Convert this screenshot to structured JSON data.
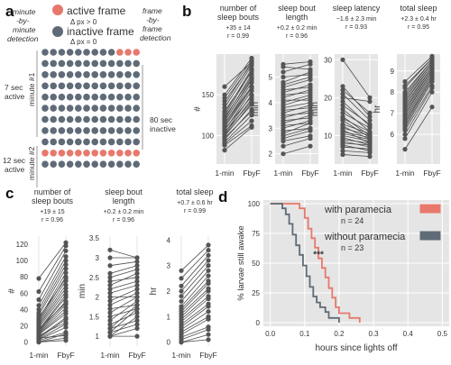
{
  "panel_labels": [
    "a",
    "b",
    "c",
    "d"
  ],
  "panel_a": {
    "legend_active_label": "active frame",
    "legend_active_sub": "Δ px > 0",
    "legend_inactive_label": "inactive frame",
    "legend_inactive_sub": "Δ px = 0",
    "left_method_label": [
      "minute",
      "-by-",
      "minute",
      "detection"
    ],
    "right_method_label": [
      "frame",
      "-by-",
      "frame",
      "detection"
    ],
    "active_note_1": [
      "7 sec",
      "active"
    ],
    "active_note_2": [
      "12 sec",
      "active"
    ],
    "inactive_note": [
      "80 sec",
      "inactive"
    ],
    "minute_1": "minute #1",
    "minute_2": "minute #2",
    "colors": {
      "active": "#e8786c",
      "inactive": "#5f6b76"
    },
    "grid": [
      [
        0,
        0,
        0,
        0,
        0,
        0,
        0,
        0,
        0,
        1,
        1,
        1
      ],
      [
        0,
        0,
        0,
        0,
        0,
        0,
        0,
        0,
        0,
        0,
        0,
        0
      ],
      [
        0,
        0,
        0,
        0,
        0,
        0,
        0,
        0,
        0,
        0,
        0,
        0
      ],
      [
        0,
        0,
        0,
        0,
        0,
        0,
        0,
        0,
        0,
        0,
        0,
        0
      ],
      [
        0,
        0,
        0,
        0,
        0,
        0,
        0,
        0,
        0,
        0,
        0,
        0
      ],
      [
        0,
        0,
        0,
        0,
        0,
        0,
        0,
        0,
        0,
        0,
        0,
        0
      ],
      [
        0,
        0,
        0,
        0,
        0,
        0,
        0,
        0,
        0,
        0,
        0,
        0
      ],
      [
        0,
        0,
        0,
        0,
        0,
        0,
        0,
        0,
        0,
        0,
        0,
        0
      ],
      [
        0,
        0,
        0,
        0,
        0,
        0,
        0,
        0,
        0,
        0,
        0,
        0
      ],
      [
        1,
        1,
        1,
        1,
        1,
        1,
        1,
        1,
        1,
        1,
        1,
        1
      ],
      [
        0,
        0,
        0,
        0,
        0,
        0,
        0,
        0,
        0,
        0,
        0,
        0
      ]
    ]
  },
  "chart_data": [
    {
      "type": "line",
      "panel": "b",
      "title": [
        "number of",
        "sleep bouts"
      ],
      "stat": "+35 ± 14",
      "r": "r = 0.99",
      "ylabel": "#",
      "categories": [
        "1-min",
        "FbyF"
      ],
      "ylim": [
        65,
        200
      ],
      "yticks": [
        100,
        150
      ],
      "pairs": [
        [
          82,
          110
        ],
        [
          88,
          112
        ],
        [
          90,
          118
        ],
        [
          92,
          125
        ],
        [
          95,
          132
        ],
        [
          97,
          130
        ],
        [
          99,
          140
        ],
        [
          100,
          138
        ],
        [
          101,
          145
        ],
        [
          103,
          150
        ],
        [
          104,
          142
        ],
        [
          106,
          155
        ],
        [
          108,
          148
        ],
        [
          110,
          158
        ],
        [
          112,
          160
        ],
        [
          114,
          165
        ],
        [
          115,
          160
        ],
        [
          117,
          170
        ],
        [
          118,
          168
        ],
        [
          120,
          175
        ],
        [
          122,
          172
        ],
        [
          124,
          180
        ],
        [
          127,
          182
        ],
        [
          130,
          178
        ],
        [
          134,
          186
        ],
        [
          138,
          190
        ],
        [
          142,
          188
        ],
        [
          146,
          192
        ],
        [
          150,
          195
        ],
        [
          160,
          190
        ]
      ]
    },
    {
      "type": "line",
      "panel": "b",
      "title": [
        "sleep bout",
        "length"
      ],
      "stat": "+0.2 ± 0.2 min",
      "r": "r = 0.96",
      "ylabel": "min",
      "categories": [
        "1-min",
        "FbyF"
      ],
      "ylim": [
        1.6,
        5.9
      ],
      "yticks": [
        2,
        3,
        4,
        5
      ],
      "pairs": [
        [
          2.0,
          2.3
        ],
        [
          2.3,
          2.6
        ],
        [
          2.5,
          2.7
        ],
        [
          2.6,
          2.9
        ],
        [
          2.7,
          3.0
        ],
        [
          2.8,
          3.2
        ],
        [
          2.9,
          3.0
        ],
        [
          3.0,
          3.3
        ],
        [
          3.1,
          3.2
        ],
        [
          3.2,
          3.5
        ],
        [
          3.3,
          3.4
        ],
        [
          3.4,
          3.7
        ],
        [
          3.5,
          3.6
        ],
        [
          3.6,
          3.9
        ],
        [
          3.7,
          3.8
        ],
        [
          3.8,
          4.0
        ],
        [
          3.9,
          4.2
        ],
        [
          4.0,
          4.3
        ],
        [
          4.1,
          4.1
        ],
        [
          4.2,
          4.5
        ],
        [
          4.3,
          4.4
        ],
        [
          4.4,
          4.7
        ],
        [
          4.5,
          4.6
        ],
        [
          4.6,
          4.9
        ],
        [
          4.7,
          5.0
        ],
        [
          4.8,
          5.2
        ],
        [
          5.0,
          5.1
        ],
        [
          5.2,
          5.5
        ],
        [
          5.4,
          5.3
        ],
        [
          5.5,
          5.6
        ]
      ]
    },
    {
      "type": "line",
      "panel": "b",
      "title": [
        "sleep latency"
      ],
      "stat": "−1.6 ± 2.3 min",
      "r": "r = 0.93",
      "ylabel": "min",
      "categories": [
        "1-min",
        "FbyF"
      ],
      "ylim": [
        2.5,
        31.5
      ],
      "yticks": [
        10,
        20,
        30
      ],
      "pairs": [
        [
          5,
          4.5
        ],
        [
          6,
          5.5
        ],
        [
          7,
          6.5
        ],
        [
          7.5,
          6
        ],
        [
          8,
          7.5
        ],
        [
          8.5,
          7
        ],
        [
          9,
          8
        ],
        [
          9.5,
          7.5
        ],
        [
          10,
          8.5
        ],
        [
          10.5,
          9
        ],
        [
          11,
          9.5
        ],
        [
          11.5,
          8
        ],
        [
          12,
          10
        ],
        [
          12.5,
          9
        ],
        [
          13,
          10.5
        ],
        [
          14,
          9.5
        ],
        [
          14.5,
          11
        ],
        [
          15,
          10
        ],
        [
          16,
          12
        ],
        [
          17,
          11
        ],
        [
          18,
          13
        ],
        [
          19,
          12.5
        ],
        [
          20,
          19
        ],
        [
          21,
          14
        ],
        [
          22,
          16
        ],
        [
          23,
          15
        ],
        [
          30,
          20
        ]
      ]
    },
    {
      "type": "line",
      "panel": "b",
      "title": [
        "total sleep"
      ],
      "stat": "+2.3 ± 0.4 hr",
      "r": "r = 0.95",
      "ylabel": "hr",
      "categories": [
        "1-min",
        "FbyF"
      ],
      "ylim": [
        4.6,
        9.8
      ],
      "yticks": [
        6,
        7,
        8,
        9
      ],
      "pairs": [
        [
          5.3,
          7.3
        ],
        [
          5.8,
          8.0
        ],
        [
          6.0,
          8.2
        ],
        [
          6.2,
          8.3
        ],
        [
          6.3,
          8.5
        ],
        [
          6.4,
          8.6
        ],
        [
          6.5,
          8.7
        ],
        [
          6.6,
          8.7
        ],
        [
          6.7,
          8.8
        ],
        [
          6.8,
          8.9
        ],
        [
          6.9,
          9.0
        ],
        [
          7.0,
          9.0
        ],
        [
          7.1,
          9.1
        ],
        [
          7.2,
          9.1
        ],
        [
          7.3,
          9.2
        ],
        [
          7.4,
          9.2
        ],
        [
          7.5,
          9.3
        ],
        [
          7.6,
          9.3
        ],
        [
          7.7,
          9.4
        ],
        [
          7.8,
          9.4
        ],
        [
          7.9,
          9.5
        ],
        [
          8.0,
          9.5
        ],
        [
          8.2,
          9.6
        ],
        [
          8.3,
          9.6
        ],
        [
          8.5,
          9.7
        ]
      ]
    },
    {
      "type": "line",
      "panel": "c",
      "title": [
        "number of",
        "sleep bouts"
      ],
      "stat": "+19 ± 15",
      "r": "r = 0.96",
      "ylabel": "#",
      "categories": [
        "1-min",
        "FbyF"
      ],
      "ylim": [
        -5,
        130
      ],
      "yticks": [
        0,
        20,
        40,
        60,
        80,
        100,
        120
      ],
      "pairs": [
        [
          0,
          2
        ],
        [
          0,
          5
        ],
        [
          0,
          10
        ],
        [
          2,
          12
        ],
        [
          3,
          18
        ],
        [
          4,
          22
        ],
        [
          5,
          28
        ],
        [
          5,
          8
        ],
        [
          6,
          30
        ],
        [
          8,
          24
        ],
        [
          9,
          35
        ],
        [
          10,
          38
        ],
        [
          11,
          42
        ],
        [
          12,
          46
        ],
        [
          13,
          50
        ],
        [
          14,
          55
        ],
        [
          15,
          58
        ],
        [
          16,
          48
        ],
        [
          18,
          62
        ],
        [
          20,
          66
        ],
        [
          22,
          70
        ],
        [
          24,
          75
        ],
        [
          26,
          80
        ],
        [
          28,
          85
        ],
        [
          30,
          78
        ],
        [
          33,
          90
        ],
        [
          36,
          95
        ],
        [
          40,
          100
        ],
        [
          45,
          105
        ],
        [
          52,
          112
        ],
        [
          62,
          118
        ],
        [
          78,
          122
        ]
      ]
    },
    {
      "type": "line",
      "panel": "c",
      "title": [
        "sleep bout",
        "length"
      ],
      "stat": "+0.2 ± 0.2 min",
      "r": "r = 0.96",
      "ylabel": "min",
      "categories": [
        "1-min",
        "FbyF"
      ],
      "ylim": [
        0.75,
        3.55
      ],
      "yticks": [
        1.0,
        1.5,
        2.0,
        2.5,
        3.0,
        3.5
      ],
      "pairs": [
        [
          1.0,
          1.0
        ],
        [
          1.0,
          1.2
        ],
        [
          1.0,
          1.5
        ],
        [
          1.1,
          1.3
        ],
        [
          1.1,
          1.7
        ],
        [
          1.2,
          1.4
        ],
        [
          1.2,
          1.8
        ],
        [
          1.3,
          1.6
        ],
        [
          1.4,
          1.9
        ],
        [
          1.5,
          1.7
        ],
        [
          1.6,
          2.0
        ],
        [
          1.7,
          1.8
        ],
        [
          1.8,
          2.1
        ],
        [
          1.9,
          2.2
        ],
        [
          2.0,
          2.0
        ],
        [
          2.1,
          2.3
        ],
        [
          2.2,
          2.4
        ],
        [
          2.3,
          2.6
        ],
        [
          2.4,
          2.5
        ],
        [
          2.5,
          2.7
        ],
        [
          2.6,
          2.8
        ],
        [
          2.8,
          2.9
        ],
        [
          3.0,
          3.0
        ],
        [
          3.2,
          3.0
        ]
      ]
    },
    {
      "type": "line",
      "panel": "c",
      "title": [
        "total sleep"
      ],
      "stat": "+0.7 ± 0.6 hr",
      "r": "r = 0.99",
      "ylabel": "hr",
      "categories": [
        "1-min",
        "FbyF"
      ],
      "ylim": [
        -0.15,
        4.15
      ],
      "yticks": [
        0,
        1,
        2,
        3,
        4
      ],
      "pairs": [
        [
          0,
          0.1
        ],
        [
          0,
          0.3
        ],
        [
          0.1,
          0.5
        ],
        [
          0.2,
          0.6
        ],
        [
          0.3,
          0.9
        ],
        [
          0.4,
          1.0
        ],
        [
          0.5,
          1.2
        ],
        [
          0.6,
          1.4
        ],
        [
          0.7,
          1.5
        ],
        [
          0.8,
          1.7
        ],
        [
          0.9,
          1.8
        ],
        [
          1.0,
          2.0
        ],
        [
          1.1,
          2.1
        ],
        [
          1.2,
          2.3
        ],
        [
          1.3,
          2.4
        ],
        [
          1.4,
          2.6
        ],
        [
          1.6,
          2.8
        ],
        [
          1.8,
          3.0
        ],
        [
          2.0,
          3.2
        ],
        [
          2.2,
          3.4
        ],
        [
          2.5,
          3.6
        ],
        [
          2.8,
          3.8
        ]
      ]
    },
    {
      "type": "line",
      "panel": "d",
      "subtype": "step",
      "xlabel": "hours since lights off",
      "ylabel": "% larvae still awake",
      "xlim": [
        -0.02,
        0.52
      ],
      "ylim": [
        -3,
        103
      ],
      "xticks": [
        0.0,
        0.1,
        0.2,
        0.3,
        0.4,
        0.5
      ],
      "yticks": [
        0,
        25,
        50,
        75,
        100
      ],
      "annotation": "***",
      "series": [
        {
          "name": "with paramecia",
          "n_label": "n = 24",
          "color": "#e8786c",
          "x": [
            0,
            0.085,
            0.1,
            0.11,
            0.12,
            0.13,
            0.14,
            0.15,
            0.16,
            0.17,
            0.18,
            0.19,
            0.2,
            0.23,
            0.26
          ],
          "y": [
            100,
            96,
            88,
            79,
            71,
            63,
            54,
            46,
            38,
            29,
            21,
            13,
            8,
            4,
            0
          ]
        },
        {
          "name": "without paramecia",
          "n_label": "n = 23",
          "color": "#5f6b76",
          "x": [
            0,
            0.035,
            0.045,
            0.055,
            0.065,
            0.075,
            0.085,
            0.095,
            0.105,
            0.115,
            0.125,
            0.135,
            0.145,
            0.16,
            0.17,
            0.2
          ],
          "y": [
            100,
            96,
            91,
            83,
            74,
            65,
            57,
            48,
            39,
            30,
            22,
            17,
            13,
            9,
            4,
            0
          ]
        }
      ]
    }
  ]
}
